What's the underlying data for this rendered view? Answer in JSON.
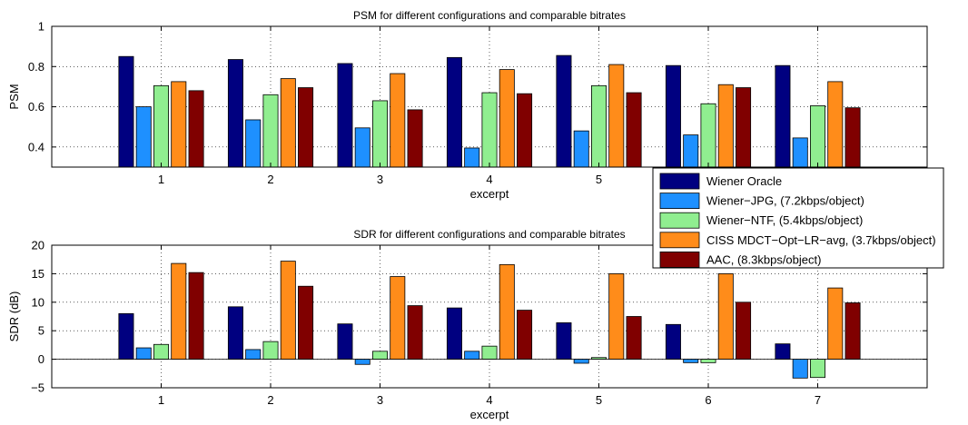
{
  "chart_data": [
    {
      "type": "bar",
      "title": "PSM for different configurations and comparable bitrates",
      "xlabel": "excerpt",
      "ylabel": "PSM",
      "ylim": [
        0.3,
        1
      ],
      "yticks": [
        "0.4",
        "0.6",
        "0.8",
        "1"
      ],
      "grid": true,
      "categories": [
        "1",
        "2",
        "3",
        "4",
        "5",
        "6",
        "7"
      ],
      "series": [
        {
          "name": "Wiener Oracle",
          "color": "#000080",
          "values": [
            0.85,
            0.835,
            0.815,
            0.845,
            0.855,
            0.805,
            0.805
          ]
        },
        {
          "name": "Wiener−JPG, (7.2kbps/object)",
          "color": "#1e90ff",
          "values": [
            0.6,
            0.535,
            0.495,
            0.395,
            0.48,
            0.46,
            0.445
          ]
        },
        {
          "name": "Wiener−NTF, (5.4kbps/object)",
          "color": "#90ee90",
          "values": [
            0.705,
            0.66,
            0.63,
            0.67,
            0.705,
            0.615,
            0.605
          ]
        },
        {
          "name": "CISS MDCT−Opt−LR−avg, (3.7kbps/object)",
          "color": "#ff8c1a",
          "values": [
            0.725,
            0.74,
            0.765,
            0.785,
            0.81,
            0.71,
            0.725
          ]
        },
        {
          "name": "AAC, (8.3kbps/object)",
          "color": "#800000",
          "values": [
            0.68,
            0.695,
            0.585,
            0.665,
            0.67,
            0.695,
            0.595
          ]
        }
      ]
    },
    {
      "type": "bar",
      "title": "SDR for different configurations and comparable bitrates",
      "xlabel": "excerpt",
      "ylabel": "SDR (dB)",
      "ylim": [
        -5,
        20
      ],
      "yticks": [
        "−5",
        "0",
        "5",
        "10",
        "15",
        "20"
      ],
      "grid": true,
      "categories": [
        "1",
        "2",
        "3",
        "4",
        "5",
        "6",
        "7"
      ],
      "series": [
        {
          "name": "Wiener Oracle",
          "color": "#000080",
          "values": [
            8.0,
            9.2,
            6.2,
            9.0,
            6.4,
            6.1,
            2.7
          ]
        },
        {
          "name": "Wiener−JPG, (7.2kbps/object)",
          "color": "#1e90ff",
          "values": [
            2.0,
            1.7,
            -0.9,
            1.4,
            -0.7,
            -0.6,
            -3.3
          ]
        },
        {
          "name": "Wiener−NTF, (5.4kbps/object)",
          "color": "#90ee90",
          "values": [
            2.6,
            3.1,
            1.4,
            2.3,
            0.3,
            -0.6,
            -3.2
          ]
        },
        {
          "name": "CISS MDCT−Opt−LR−avg, (3.7kbps/object)",
          "color": "#ff8c1a",
          "values": [
            16.8,
            17.2,
            14.5,
            16.6,
            15.0,
            15.0,
            12.5
          ]
        },
        {
          "name": "AAC, (8.3kbps/object)",
          "color": "#800000",
          "values": [
            15.2,
            12.8,
            9.4,
            8.6,
            7.5,
            10.0,
            9.9
          ]
        }
      ]
    }
  ]
}
